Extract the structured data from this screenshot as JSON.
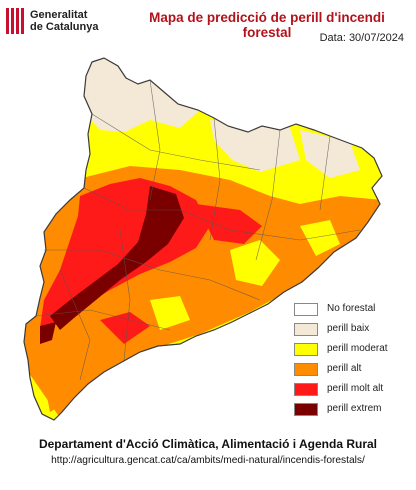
{
  "logo": {
    "line1": "Generalitat",
    "line2": "de Catalunya"
  },
  "title": "Mapa de predicció de perill d'incendi forestal",
  "date": "Data: 30/07/2024",
  "legend": [
    {
      "label": "No forestal",
      "color": "#ffffff"
    },
    {
      "label": "perill baix",
      "color": "#f4e8d6"
    },
    {
      "label": "perill moderat",
      "color": "#ffff00"
    },
    {
      "label": "perill alt",
      "color": "#ff8c00"
    },
    {
      "label": "perill molt alt",
      "color": "#ff1a1a"
    },
    {
      "label": "perill extrem",
      "color": "#7a0000"
    }
  ],
  "footer": {
    "department": "Departament d'Acció Climàtica, Alimentació i Agenda Rural",
    "url": "http://agricultura.gencat.cat/ca/ambits/medi-natural/incendis-forestals/"
  }
}
